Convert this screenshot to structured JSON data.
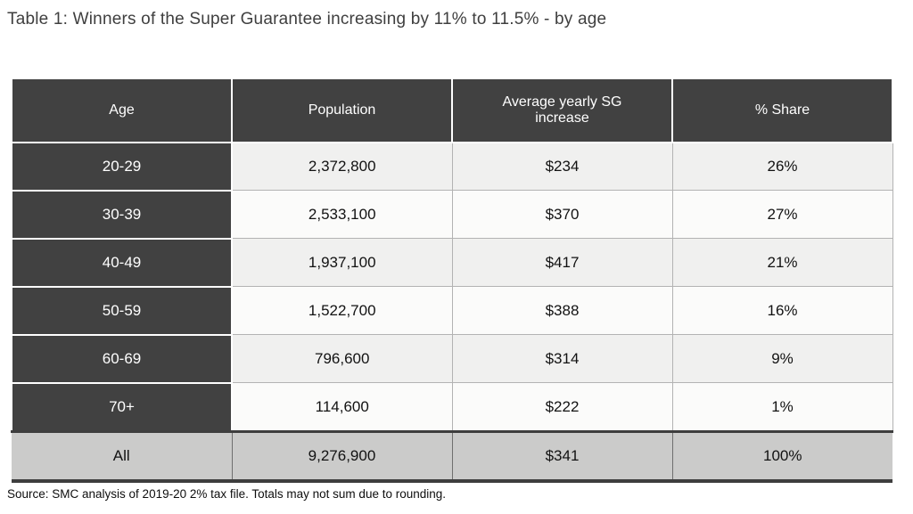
{
  "title": "Table 1: Winners of the Super Guarantee increasing by 11% to 11.5% - by age",
  "table": {
    "columns": [
      "Age",
      "Population",
      "Average yearly SG increase",
      "% Share"
    ],
    "rows": [
      [
        "20-29",
        "2,372,800",
        "$234",
        "26%"
      ],
      [
        "30-39",
        "2,533,100",
        "$370",
        "27%"
      ],
      [
        "40-49",
        "1,937,100",
        "$417",
        "21%"
      ],
      [
        "50-59",
        "1,522,700",
        "$388",
        "16%"
      ],
      [
        "60-69",
        "796,600",
        "$314",
        "9%"
      ],
      [
        "70+",
        "114,600",
        "$222",
        "1%"
      ]
    ],
    "total_row": [
      "All",
      "9,276,900",
      "$341",
      "100%"
    ]
  },
  "source_note": "Source: SMC analysis of 2019-20 2% tax file. Totals may not sum due to rounding.",
  "colors": {
    "header_bg": "#414141",
    "header_text": "#ffffff",
    "row_light_gray": "#f0f0ef",
    "row_white": "#fbfbfa",
    "total_row_bg": "#cbcbca",
    "border_dark": "#3e3e3e",
    "border_light": "#b3b3b3",
    "title_text": "#3f3f3f"
  },
  "chart_data": {
    "type": "table",
    "title": "Table 1: Winners of the Super Guarantee increasing by 11% to 11.5% - by age",
    "columns": [
      "Age",
      "Population",
      "Average yearly SG increase",
      "% Share"
    ],
    "rows": [
      {
        "age": "20-29",
        "population": 2372800,
        "avg_yearly_sg_increase": 234,
        "share_pct": 26
      },
      {
        "age": "30-39",
        "population": 2533100,
        "avg_yearly_sg_increase": 370,
        "share_pct": 27
      },
      {
        "age": "40-49",
        "population": 1937100,
        "avg_yearly_sg_increase": 417,
        "share_pct": 21
      },
      {
        "age": "50-59",
        "population": 1522700,
        "avg_yearly_sg_increase": 388,
        "share_pct": 16
      },
      {
        "age": "60-69",
        "population": 796600,
        "avg_yearly_sg_increase": 314,
        "share_pct": 9
      },
      {
        "age": "70+",
        "population": 114600,
        "avg_yearly_sg_increase": 222,
        "share_pct": 1
      },
      {
        "age": "All",
        "population": 9276900,
        "avg_yearly_sg_increase": 341,
        "share_pct": 100
      }
    ],
    "source": "Source: SMC analysis of 2019-20 2% tax file. Totals may not sum due to rounding."
  }
}
